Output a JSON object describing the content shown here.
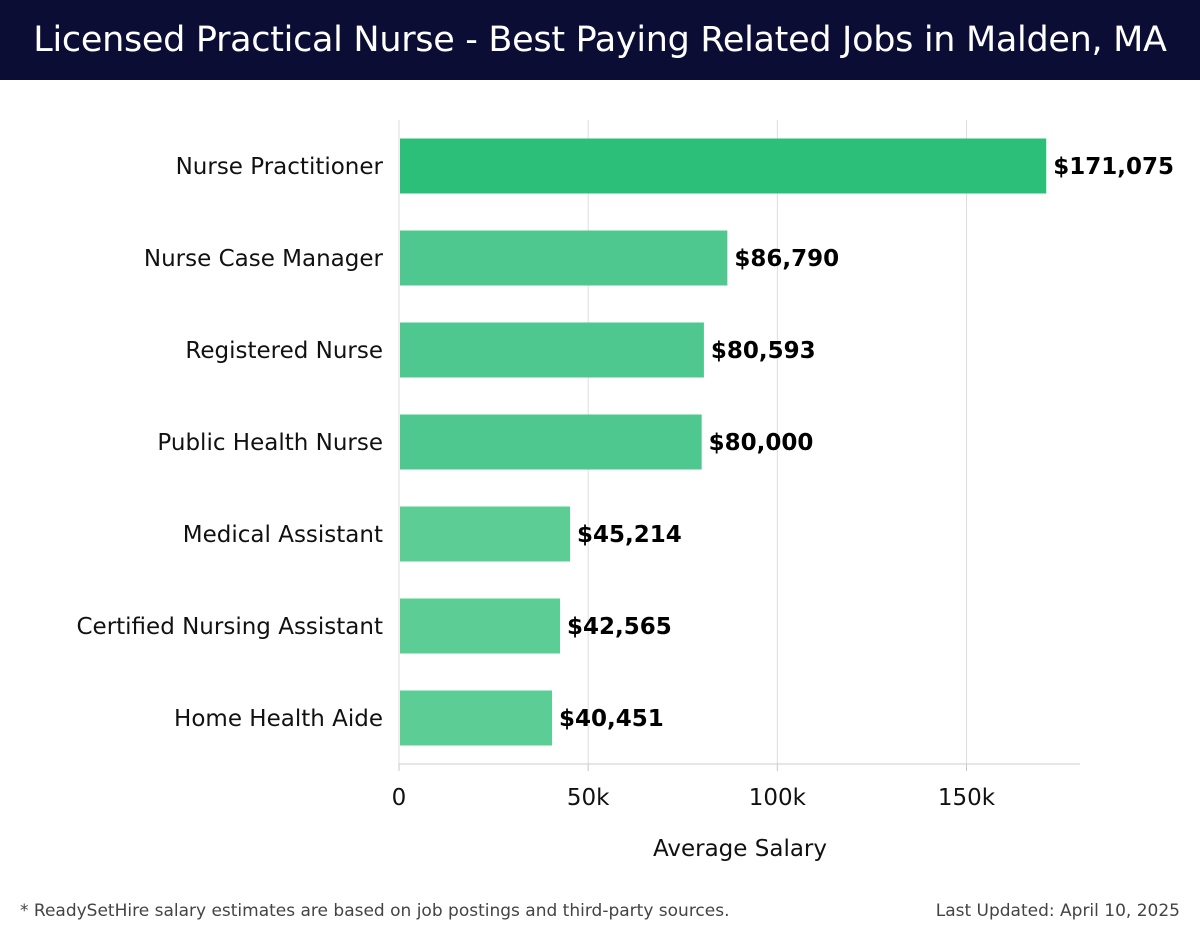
{
  "header": {
    "title": "Licensed Practical Nurse - Best Paying Related Jobs in Malden, MA"
  },
  "chart_data": {
    "type": "bar",
    "orientation": "horizontal",
    "categories": [
      "Nurse Practitioner",
      "Nurse Case Manager",
      "Registered Nurse",
      "Public Health Nurse",
      "Medical Assistant",
      "Certified Nursing Assistant",
      "Home Health Aide"
    ],
    "values": [
      171075,
      86790,
      80593,
      80000,
      45214,
      42565,
      40451
    ],
    "value_labels": [
      "$171,075",
      "$86,790",
      "$80,593",
      "$80,000",
      "$45,214",
      "$42,565",
      "$40,451"
    ],
    "xlabel": "Average Salary",
    "ylabel": "",
    "xlim": [
      0,
      180000
    ],
    "xticks": [
      0,
      50000,
      100000,
      150000
    ],
    "xtick_labels": [
      "0",
      "50k",
      "100k",
      "150k"
    ],
    "grid": true,
    "colors": {
      "highlight": "#2bbf7a",
      "bar": "#4ec88f",
      "bar_light": "#5ccd95"
    }
  },
  "footer": {
    "note": "* ReadySetHire salary estimates are based on job postings and third-party sources.",
    "updated": "Last Updated: April 10, 2025"
  }
}
